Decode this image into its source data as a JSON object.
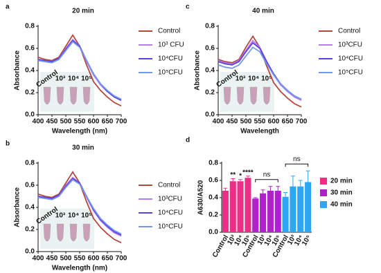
{
  "chart_data": [
    {
      "type": "line",
      "label": "a",
      "title": "20 min",
      "xlabel": "Wavelength (nm)",
      "ylabel": "Absorbance",
      "x": [
        400,
        425,
        450,
        475,
        500,
        525,
        550,
        575,
        600,
        625,
        650,
        675,
        700
      ],
      "xlim": [
        400,
        700
      ],
      "xticks": [
        400,
        450,
        500,
        550,
        600,
        650,
        700
      ],
      "ylim": [
        0,
        0.8
      ],
      "yticks": [
        {
          "value": 0,
          "label": "0.0"
        },
        0.2,
        0.4,
        0.6,
        0.8
      ],
      "inset_labels": [
        "Control",
        "10³",
        "10⁴",
        "10⁵"
      ],
      "series": [
        {
          "name": "Control",
          "color": "#b4473c",
          "values": [
            0.52,
            0.5,
            0.49,
            0.52,
            0.62,
            0.72,
            0.62,
            0.45,
            0.3,
            0.22,
            0.16,
            0.11,
            0.08
          ]
        },
        {
          "name": "10³ CFU",
          "color": "#b77cf2",
          "values": [
            0.5,
            0.49,
            0.48,
            0.51,
            0.6,
            0.68,
            0.62,
            0.48,
            0.36,
            0.27,
            0.21,
            0.16,
            0.13
          ]
        },
        {
          "name": "10⁴CFU",
          "color": "#5b3fe0",
          "values": [
            0.5,
            0.49,
            0.48,
            0.51,
            0.59,
            0.67,
            0.62,
            0.49,
            0.37,
            0.28,
            0.21,
            0.16,
            0.13
          ]
        },
        {
          "name": "10⁵CFU",
          "color": "#7197ef",
          "values": [
            0.49,
            0.48,
            0.47,
            0.5,
            0.58,
            0.66,
            0.61,
            0.49,
            0.37,
            0.28,
            0.22,
            0.17,
            0.14
          ]
        }
      ]
    },
    {
      "type": "line",
      "label": "b",
      "title": "30 min",
      "xlabel": "Wavelength (nm)",
      "ylabel": "Absorbance",
      "x": [
        400,
        425,
        450,
        475,
        500,
        525,
        550,
        575,
        600,
        625,
        650,
        675,
        700
      ],
      "xlim": [
        400,
        700
      ],
      "xticks": [
        400,
        450,
        500,
        550,
        600,
        650,
        700
      ],
      "ylim": [
        0,
        0.8
      ],
      "yticks": [
        {
          "value": 0,
          "label": "0.0"
        },
        0.2,
        0.4,
        0.6,
        0.8
      ],
      "inset_labels": [
        "Control",
        "10³",
        "10⁴",
        "10⁵"
      ],
      "series": [
        {
          "name": "Control",
          "color": "#b4473c",
          "values": [
            0.52,
            0.5,
            0.49,
            0.52,
            0.62,
            0.72,
            0.62,
            0.45,
            0.3,
            0.22,
            0.16,
            0.11,
            0.08
          ]
        },
        {
          "name": "10³CFU",
          "color": "#b77cf2",
          "values": [
            0.5,
            0.49,
            0.48,
            0.51,
            0.6,
            0.67,
            0.62,
            0.49,
            0.37,
            0.28,
            0.22,
            0.17,
            0.14
          ]
        },
        {
          "name": "10⁴CFU",
          "color": "#5b3fe0",
          "values": [
            0.5,
            0.49,
            0.48,
            0.51,
            0.59,
            0.66,
            0.62,
            0.5,
            0.38,
            0.29,
            0.23,
            0.18,
            0.15
          ]
        },
        {
          "name": "10⁵CFU",
          "color": "#7197ef",
          "values": [
            0.49,
            0.48,
            0.47,
            0.5,
            0.58,
            0.65,
            0.61,
            0.5,
            0.39,
            0.3,
            0.24,
            0.19,
            0.16
          ]
        }
      ]
    },
    {
      "type": "line",
      "label": "c",
      "title": "40 min",
      "xlabel": "Wavelength",
      "ylabel": "Absorbance",
      "x": [
        400,
        425,
        450,
        475,
        500,
        525,
        550,
        575,
        600,
        625,
        650,
        675,
        700
      ],
      "xlim": [
        400,
        700
      ],
      "xticks": [
        400,
        450,
        500,
        550,
        600,
        650,
        700
      ],
      "ylim": [
        0,
        0.8
      ],
      "yticks": [
        {
          "value": 0,
          "label": "0.0"
        },
        0.2,
        0.4,
        0.6,
        0.8
      ],
      "inset_labels": [
        "Control",
        "10³",
        "10⁴",
        "10⁵"
      ],
      "series": [
        {
          "name": "Control",
          "color": "#b4473c",
          "values": [
            0.5,
            0.48,
            0.47,
            0.5,
            0.61,
            0.71,
            0.61,
            0.44,
            0.29,
            0.21,
            0.15,
            0.1,
            0.07
          ]
        },
        {
          "name": "10³CFU",
          "color": "#b77cf2",
          "values": [
            0.49,
            0.47,
            0.46,
            0.49,
            0.58,
            0.67,
            0.61,
            0.48,
            0.36,
            0.27,
            0.21,
            0.16,
            0.13
          ]
        },
        {
          "name": "10⁴CFU",
          "color": "#5b3fe0",
          "values": [
            0.48,
            0.46,
            0.45,
            0.48,
            0.57,
            0.65,
            0.6,
            0.48,
            0.37,
            0.28,
            0.22,
            0.17,
            0.14
          ]
        },
        {
          "name": "10⁵CFU",
          "color": "#7197ef",
          "values": [
            0.45,
            0.43,
            0.42,
            0.45,
            0.53,
            0.61,
            0.57,
            0.46,
            0.36,
            0.28,
            0.22,
            0.17,
            0.14
          ]
        }
      ]
    },
    {
      "type": "bar",
      "label": "d",
      "ylabel": "A630/A520",
      "categories": [
        "Control",
        "10³",
        "10⁴",
        "10⁵",
        "Control",
        "10³",
        "10⁴",
        "10⁵",
        "Control",
        "10³",
        "10⁴",
        "10⁵"
      ],
      "ylim": [
        0,
        0.8
      ],
      "yticks": [
        {
          "value": 0,
          "label": "0.0"
        },
        0.2,
        0.4,
        0.6,
        0.8
      ],
      "series": [
        {
          "name": "20 min",
          "color": "#ea2f86",
          "values": [
            0.48,
            0.59,
            0.59,
            0.63,
            null,
            null,
            null,
            null,
            null,
            null,
            null,
            null
          ],
          "errors": [
            0.03,
            0.03,
            0.02,
            0.02,
            null,
            null,
            null,
            null,
            null,
            null,
            null,
            null
          ],
          "annotations": [
            null,
            "**",
            "*",
            "****",
            null,
            null,
            null,
            null,
            null,
            null,
            null,
            null
          ]
        },
        {
          "name": "30 min",
          "color": "#b21fcf",
          "values": [
            null,
            null,
            null,
            null,
            0.39,
            0.45,
            0.48,
            0.48,
            null,
            null,
            null,
            null
          ],
          "errors": [
            null,
            null,
            null,
            null,
            0.01,
            0.04,
            0.05,
            0.05,
            null,
            null,
            null,
            null
          ],
          "bracket_label": "ns"
        },
        {
          "name": "40 min",
          "color": "#2fa6f2",
          "values": [
            null,
            null,
            null,
            null,
            null,
            null,
            null,
            null,
            0.41,
            0.53,
            0.53,
            0.58
          ],
          "errors": [
            null,
            null,
            null,
            null,
            null,
            null,
            null,
            null,
            0.05,
            0.12,
            0.07,
            0.13
          ],
          "bracket_label": "ns"
        }
      ]
    }
  ]
}
